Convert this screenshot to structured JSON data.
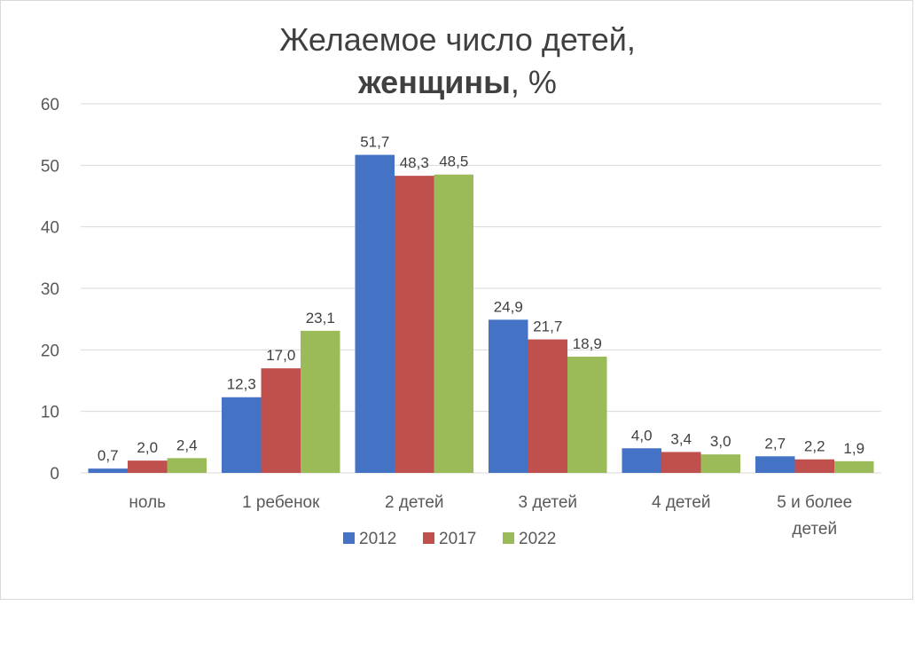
{
  "chart_data": {
    "type": "bar",
    "title_line1": "Желаемое число детей,",
    "title_line2_bold": "женщины",
    "title_line2_rest": ", %",
    "categories": [
      "ноль",
      "1 ребенок",
      "2 детей",
      "3 детей",
      "4 детей",
      "5 и более детей"
    ],
    "category_lines": [
      [
        "ноль"
      ],
      [
        "1 ребенок"
      ],
      [
        "2 детей"
      ],
      [
        "3 детей"
      ],
      [
        "4 детей"
      ],
      [
        "5 и более",
        "детей"
      ]
    ],
    "series": [
      {
        "name": "2012",
        "color": "#4472c4",
        "values": [
          0.7,
          12.3,
          51.7,
          24.9,
          4.0,
          2.7
        ],
        "labels": [
          "0,7",
          "12,3",
          "51,7",
          "24,9",
          "4,0",
          "2,7"
        ]
      },
      {
        "name": "2017",
        "color": "#c0504d",
        "values": [
          2.0,
          17.0,
          48.3,
          21.7,
          3.4,
          2.2
        ],
        "labels": [
          "2,0",
          "17,0",
          "48,3",
          "21,7",
          "3,4",
          "2,2"
        ]
      },
      {
        "name": "2022",
        "color": "#9bbb59",
        "values": [
          2.4,
          23.1,
          48.5,
          18.9,
          3.0,
          1.9
        ],
        "labels": [
          "2,4",
          "23,1",
          "48,5",
          "18,9",
          "3,0",
          "1,9"
        ]
      }
    ],
    "ylim": [
      0,
      60
    ],
    "yticks": [
      0,
      10,
      20,
      30,
      40,
      50,
      60
    ],
    "grid": true,
    "legend_position": "bottom"
  }
}
